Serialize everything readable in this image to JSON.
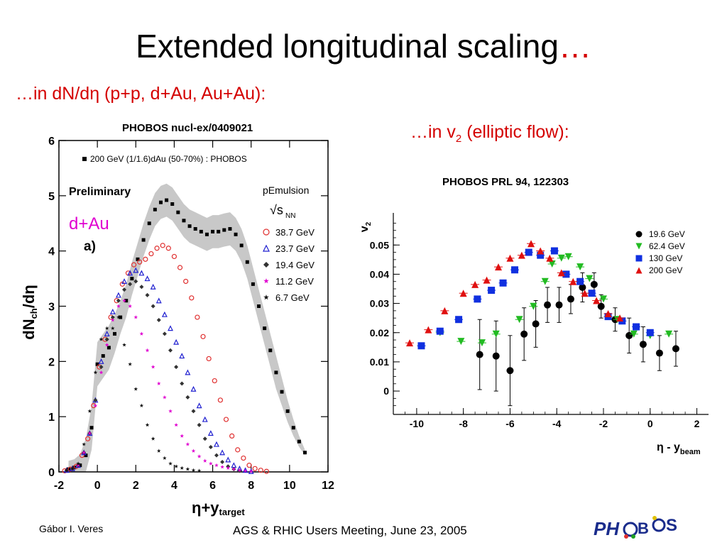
{
  "slide": {
    "title": "Extended longitudinal scaling",
    "title_suffix": "…",
    "subtitle_left": "…in dN/dη (p+p, d+Au, Au+Au):",
    "subtitle_right_pre": "…in v",
    "subtitle_right_sub": "2",
    "subtitle_right_post": " (elliptic flow):",
    "left_reference": "PHOBOS nucl-ex/0409021",
    "right_reference": "PHOBOS PRL 94, 122303",
    "author": "Gábor I. Veres",
    "conference": "AGS & RHIC Users Meeting, June 23, 2005",
    "logo_text": "PHOBOS",
    "colors": {
      "accent_red": "#d40000",
      "magenta": "#e000d0"
    }
  },
  "chart_data": [
    {
      "type": "scatter",
      "xlabel": "η+y",
      "xlabel_sub": "target",
      "ylabel": "dN",
      "ylabel_sub": "ch",
      "ylabel_tail": "/dη",
      "xlim": [
        -2,
        12
      ],
      "ylim": [
        0,
        6
      ],
      "xticks": [
        "-2",
        "0",
        "2",
        "4",
        "6",
        "8",
        "10",
        "12"
      ],
      "yticks": [
        "0",
        "1",
        "2",
        "3",
        "4",
        "5",
        "6"
      ],
      "panel_label": "a)",
      "preliminary": "Preliminary",
      "annotation": "d+Au",
      "legend_header": "200 GeV (1/1.6)dAu (50-70%) : PHOBOS",
      "legend_group_title": "pEmulsion",
      "legend_group_unit": "√s",
      "legend_group_unit_sub": "NN",
      "series": [
        {
          "name": "200 GeV (1/1.6)dAu (50-70%) : PHOBOS",
          "marker": "square",
          "color": "#000000",
          "x": [
            -1.5,
            -1.2,
            -0.9,
            -0.6,
            -0.3,
            0.0,
            0.3,
            0.6,
            0.9,
            1.2,
            1.5,
            1.8,
            2.1,
            2.4,
            2.7,
            3.0,
            3.3,
            3.6,
            3.9,
            4.2,
            4.5,
            4.8,
            5.1,
            5.4,
            5.7,
            6.0,
            6.3,
            6.6,
            6.9,
            7.2,
            7.5,
            7.8,
            8.1,
            8.4,
            8.7,
            9.0,
            9.3,
            9.6,
            9.9,
            10.2,
            10.5,
            10.8
          ],
          "y": [
            0.05,
            0.08,
            0.12,
            0.3,
            0.8,
            1.95,
            2.1,
            2.25,
            2.5,
            2.8,
            3.1,
            3.5,
            3.85,
            4.2,
            4.5,
            4.75,
            4.88,
            4.92,
            4.85,
            4.7,
            4.55,
            4.45,
            4.4,
            4.35,
            4.3,
            4.35,
            4.35,
            4.38,
            4.4,
            4.3,
            4.1,
            3.8,
            3.4,
            3.0,
            2.6,
            2.2,
            1.8,
            1.45,
            1.1,
            0.8,
            0.55,
            0.35
          ],
          "band": [
            0.15,
            0.15,
            0.2,
            0.3,
            0.4,
            0.4,
            0.4,
            0.4,
            0.35,
            0.3,
            0.3,
            0.3,
            0.3,
            0.3,
            0.3,
            0.3,
            0.3,
            0.3,
            0.3,
            0.3,
            0.3,
            0.3,
            0.3,
            0.3,
            0.3,
            0.3,
            0.3,
            0.3,
            0.3,
            0.3,
            0.3,
            0.3,
            0.3,
            0.3,
            0.3,
            0.3,
            0.3,
            0.25,
            0.2,
            0.15,
            0.1,
            0.05
          ]
        },
        {
          "name": "38.7 GeV",
          "marker": "circle",
          "color": "#e03030",
          "x": [
            -1.7,
            -1.4,
            -1.1,
            -0.8,
            -0.5,
            -0.2,
            0.1,
            0.4,
            0.7,
            1.0,
            1.3,
            1.6,
            1.9,
            2.2,
            2.5,
            2.8,
            3.1,
            3.4,
            3.7,
            4.0,
            4.3,
            4.6,
            4.9,
            5.2,
            5.5,
            5.8,
            6.1,
            6.4,
            6.7,
            7.0,
            7.3,
            7.6,
            7.9,
            8.2,
            8.5,
            8.8
          ],
          "y": [
            0.02,
            0.05,
            0.1,
            0.3,
            0.6,
            1.2,
            1.9,
            2.4,
            2.8,
            3.1,
            3.4,
            3.6,
            3.75,
            3.8,
            3.85,
            3.95,
            4.05,
            4.1,
            4.05,
            3.9,
            3.7,
            3.45,
            3.15,
            2.8,
            2.45,
            2.05,
            1.65,
            1.3,
            0.95,
            0.65,
            0.4,
            0.25,
            0.12,
            0.06,
            0.03,
            0.01
          ]
        },
        {
          "name": "23.7 GeV",
          "marker": "triangle",
          "color": "#2020d0",
          "x": [
            -1.6,
            -1.3,
            -1.0,
            -0.7,
            -0.4,
            -0.1,
            0.2,
            0.5,
            0.8,
            1.1,
            1.4,
            1.7,
            2.0,
            2.3,
            2.6,
            2.9,
            3.2,
            3.5,
            3.8,
            4.1,
            4.4,
            4.7,
            5.0,
            5.3,
            5.6,
            5.9,
            6.2,
            6.5,
            6.8,
            7.1,
            7.4,
            7.7,
            8.0
          ],
          "y": [
            0.03,
            0.06,
            0.12,
            0.35,
            0.7,
            1.3,
            2.0,
            2.5,
            2.9,
            3.2,
            3.45,
            3.6,
            3.65,
            3.6,
            3.5,
            3.35,
            3.1,
            2.85,
            2.6,
            2.35,
            2.1,
            1.8,
            1.5,
            1.2,
            0.95,
            0.7,
            0.5,
            0.35,
            0.22,
            0.12,
            0.06,
            0.03,
            0.01
          ]
        },
        {
          "name": "19.4 GeV",
          "marker": "diamond",
          "color": "#333333",
          "x": [
            -1.6,
            -1.3,
            -1.0,
            -0.7,
            -0.4,
            -0.1,
            0.2,
            0.5,
            0.8,
            1.1,
            1.4,
            1.7,
            2.0,
            2.3,
            2.6,
            2.9,
            3.2,
            3.5,
            3.8,
            4.1,
            4.4,
            4.7,
            5.0,
            5.3,
            5.6,
            5.9,
            6.2,
            6.5,
            6.8,
            7.1,
            7.4
          ],
          "y": [
            0.03,
            0.06,
            0.12,
            0.35,
            0.7,
            1.3,
            1.9,
            2.4,
            2.8,
            3.1,
            3.3,
            3.4,
            3.45,
            3.35,
            3.2,
            3.0,
            2.75,
            2.5,
            2.2,
            1.9,
            1.6,
            1.35,
            1.1,
            0.85,
            0.6,
            0.45,
            0.3,
            0.18,
            0.1,
            0.05,
            0.02
          ]
        },
        {
          "name": "11.2 GeV",
          "marker": "star",
          "color": "#e000d0",
          "x": [
            -1.6,
            -1.3,
            -1.0,
            -0.7,
            -0.4,
            -0.1,
            0.2,
            0.5,
            0.8,
            1.1,
            1.4,
            1.7,
            2.0,
            2.3,
            2.6,
            2.9,
            3.2,
            3.5,
            3.8,
            4.1,
            4.4,
            4.7,
            5.0,
            5.3,
            5.6,
            5.9,
            6.2,
            6.5,
            6.8,
            7.1,
            7.4,
            7.7,
            8.0
          ],
          "y": [
            0.03,
            0.06,
            0.12,
            0.35,
            0.7,
            1.2,
            1.8,
            2.3,
            2.75,
            3.0,
            3.1,
            3.0,
            2.8,
            2.5,
            2.2,
            1.9,
            1.6,
            1.35,
            1.1,
            0.85,
            0.65,
            0.5,
            0.38,
            0.28,
            0.2,
            0.15,
            0.12,
            0.09,
            0.07,
            0.05,
            0.03,
            0.02,
            0.01
          ]
        },
        {
          "name": "6.7 GeV",
          "marker": "asterisk",
          "color": "#111111",
          "x": [
            -1.6,
            -1.3,
            -1.0,
            -0.7,
            -0.4,
            -0.1,
            0.2,
            0.5,
            0.8,
            1.1,
            1.4,
            1.7,
            2.0,
            2.3,
            2.6,
            2.9,
            3.2,
            3.5,
            3.8,
            4.1,
            4.4,
            4.7,
            5.0,
            5.3
          ],
          "y": [
            0.03,
            0.06,
            0.15,
            0.5,
            1.1,
            1.8,
            2.4,
            2.6,
            2.6,
            2.8,
            2.3,
            1.95,
            1.5,
            1.2,
            0.85,
            0.6,
            0.38,
            0.25,
            0.15,
            0.1,
            0.07,
            0.05,
            0.03,
            0.02
          ]
        }
      ]
    },
    {
      "type": "scatter",
      "xlabel": "η - y",
      "xlabel_sub": "beam",
      "ylabel": "v",
      "ylabel_sub": "2",
      "xlim": [
        -11,
        2.5
      ],
      "ylim": [
        -0.008,
        0.061
      ],
      "xticks": [
        "-10",
        "-8",
        "-6",
        "-4",
        "-2",
        "0",
        "2"
      ],
      "yticks": [
        "0",
        "0.01",
        "0.02",
        "0.03",
        "0.04",
        "0.05"
      ],
      "series": [
        {
          "name": "19.6 GeV",
          "marker": "circle",
          "color": "#000000",
          "x": [
            -7.3,
            -6.6,
            -6.0,
            -5.4,
            -4.9,
            -4.4,
            -3.9,
            -3.4,
            -2.9,
            -2.4,
            -2.1,
            -1.5,
            -0.9,
            -0.3,
            0.4,
            1.1
          ],
          "y": [
            0.0125,
            0.012,
            0.007,
            0.0195,
            0.023,
            0.0295,
            0.0295,
            0.0315,
            0.0355,
            0.0365,
            0.029,
            0.0245,
            0.019,
            0.016,
            0.013,
            0.0145
          ],
          "err": [
            0.012,
            0.012,
            0.012,
            0.009,
            0.008,
            0.006,
            0.006,
            0.005,
            0.005,
            0.004,
            0.004,
            0.004,
            0.006,
            0.006,
            0.006,
            0.006
          ]
        },
        {
          "name": "62.4 GeV",
          "marker": "triangle-down",
          "color": "#22bb22",
          "x": [
            -9.0,
            -8.1,
            -7.2,
            -6.6,
            -5.6,
            -5.0,
            -4.5,
            -4.2,
            -3.8,
            -3.5,
            -3.0,
            -2.6,
            -2.0,
            -1.4,
            -0.7,
            0.0,
            0.8
          ],
          "y": [
            0.02,
            0.017,
            0.0165,
            0.0195,
            0.0245,
            0.029,
            0.0375,
            0.0435,
            0.0455,
            0.046,
            0.0425,
            0.0385,
            0.0315,
            0.0245,
            0.0195,
            0.019,
            0.0195
          ],
          "err": [
            0.001,
            0.001,
            0.001,
            0.001,
            0.001,
            0.001,
            0.001,
            0.001,
            0.001,
            0.001,
            0.001,
            0.001,
            0.001,
            0.001,
            0.001,
            0.001,
            0.001
          ]
        },
        {
          "name": "130 GeV",
          "marker": "square",
          "color": "#1030e0",
          "x": [
            -9.8,
            -9.0,
            -8.2,
            -7.4,
            -6.8,
            -6.3,
            -5.8,
            -5.2,
            -4.7,
            -4.1,
            -3.6,
            -3.0,
            -2.5,
            -1.8,
            -1.2,
            -0.6,
            0.0
          ],
          "y": [
            0.0155,
            0.0205,
            0.0245,
            0.0315,
            0.0345,
            0.037,
            0.0415,
            0.0475,
            0.0465,
            0.048,
            0.04,
            0.0375,
            0.0335,
            0.0255,
            0.024,
            0.022,
            0.02
          ],
          "err": [
            0.001,
            0.001,
            0.001,
            0.001,
            0.001,
            0.001,
            0.001,
            0.001,
            0.001,
            0.001,
            0.001,
            0.001,
            0.001,
            0.001,
            0.001,
            0.001,
            0.001
          ]
        },
        {
          "name": "200 GeV",
          "marker": "triangle",
          "color": "#e01010",
          "x": [
            -10.3,
            -9.5,
            -8.8,
            -8.0,
            -7.5,
            -7.0,
            -6.5,
            -6.0,
            -5.5,
            -5.1,
            -4.7,
            -4.3,
            -3.8,
            -3.3,
            -2.8,
            -2.3,
            -1.8,
            -1.3
          ],
          "y": [
            0.0165,
            0.021,
            0.0275,
            0.0335,
            0.0365,
            0.038,
            0.0425,
            0.0455,
            0.0465,
            0.0505,
            0.048,
            0.0455,
            0.0405,
            0.0375,
            0.0335,
            0.031,
            0.0265,
            0.025
          ],
          "err": [
            0.001,
            0.001,
            0.001,
            0.001,
            0.001,
            0.001,
            0.001,
            0.001,
            0.001,
            0.001,
            0.001,
            0.001,
            0.001,
            0.001,
            0.001,
            0.001,
            0.001,
            0.001
          ]
        }
      ]
    }
  ]
}
